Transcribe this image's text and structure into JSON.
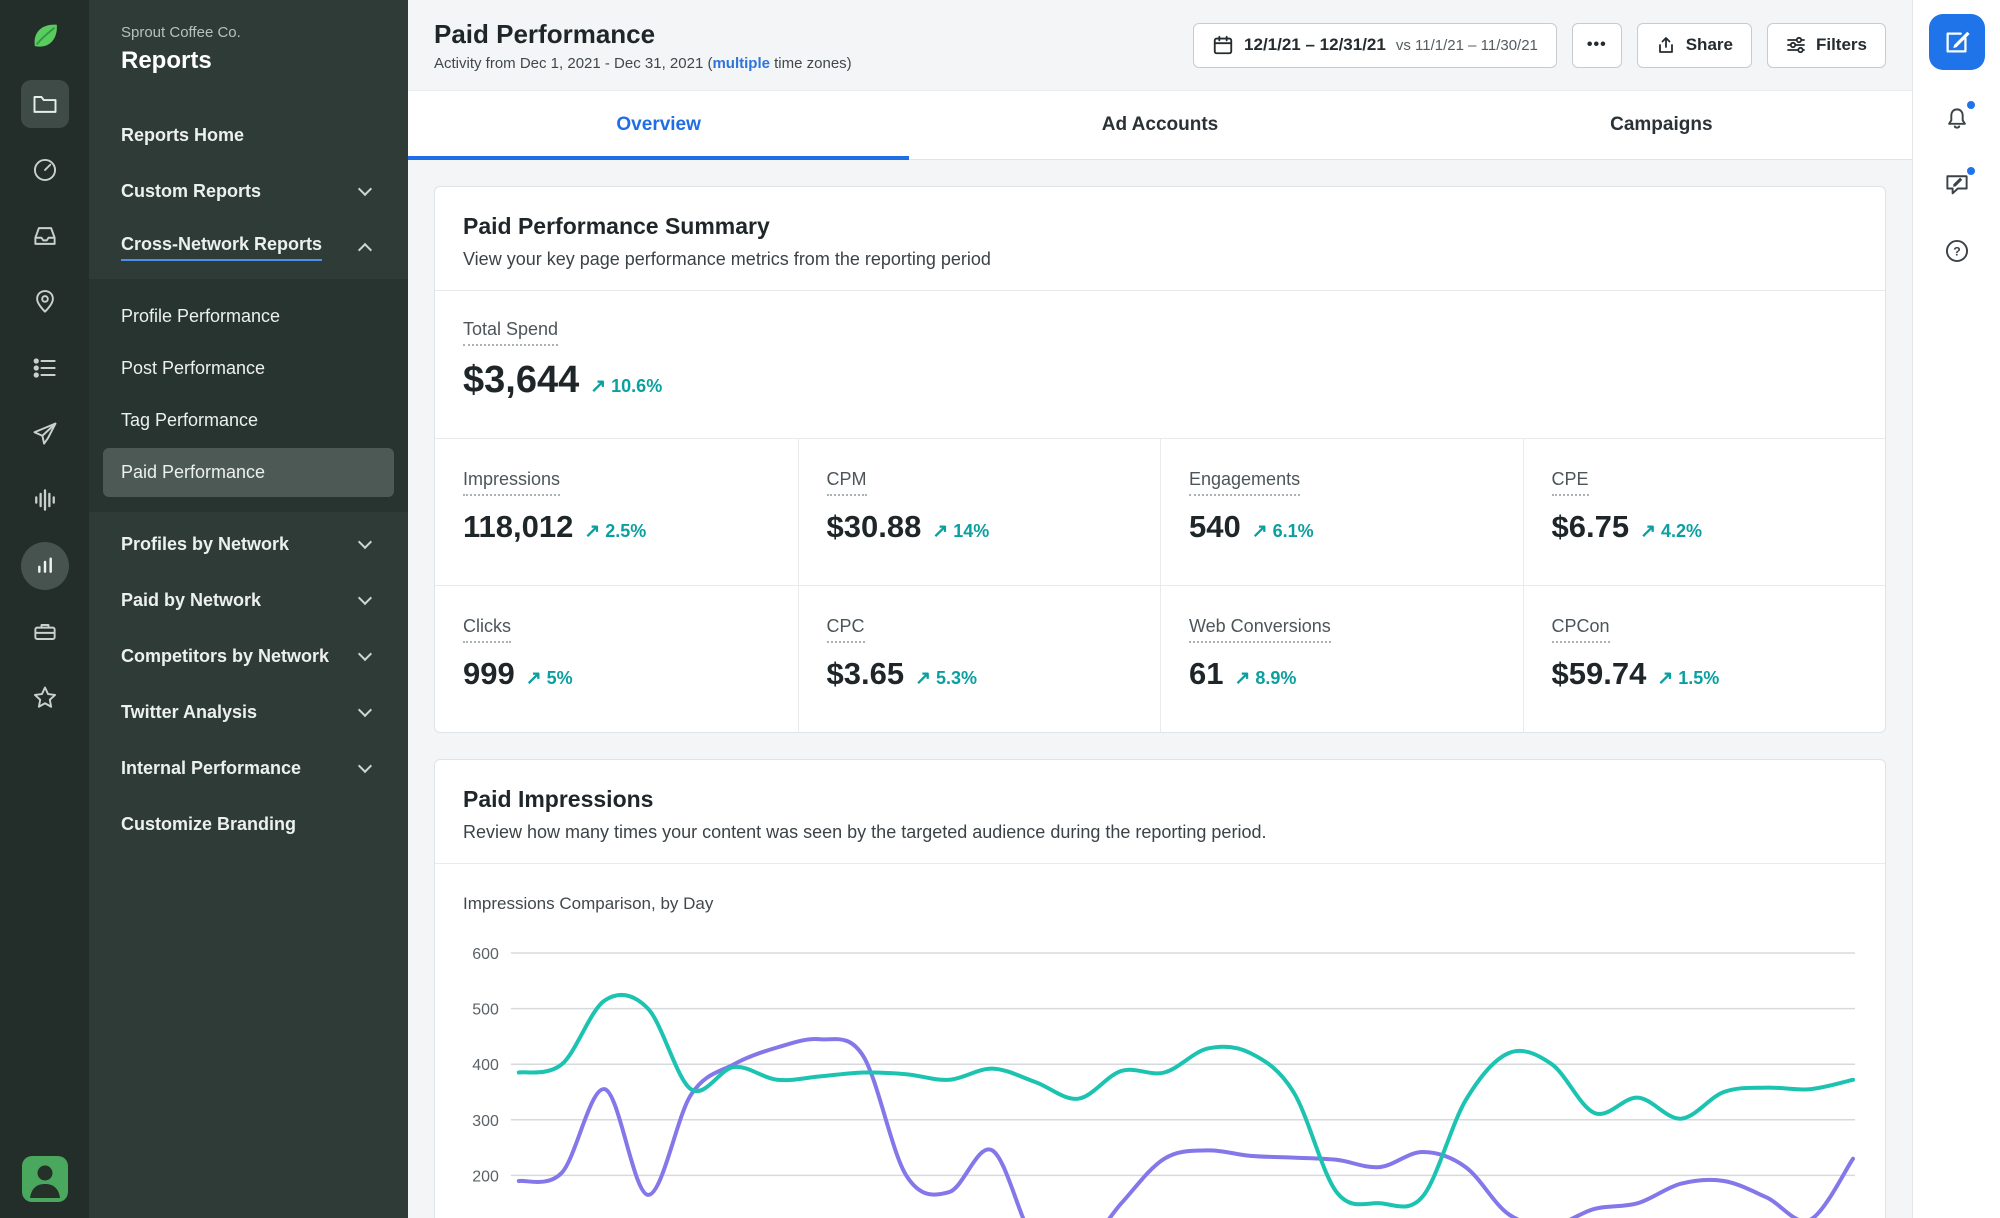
{
  "colors": {
    "accent_blue": "#1f6ee5",
    "link_blue": "#2d74db",
    "delta_teal": "#0ba0a0",
    "line_teal": "#1cc3b0",
    "line_purple": "#8377e9",
    "sprout_green": "#59cb5f",
    "sidebar_bg": "#2f3b37",
    "rail_bg": "#232d2a"
  },
  "left_rail": {
    "icons": [
      "sprout-logo",
      "folder",
      "gauge",
      "inbox",
      "pin",
      "list",
      "paper-plane",
      "waveform",
      "bar-chart",
      "briefcase",
      "star"
    ],
    "avatar": "user-avatar"
  },
  "right_rail": {
    "icons": [
      "compose",
      "bell",
      "feedback",
      "help"
    ]
  },
  "sidebar": {
    "account": "Sprout Coffee Co.",
    "title": "Reports",
    "items": [
      {
        "label": "Reports Home"
      },
      {
        "label": "Custom Reports"
      },
      {
        "label": "Cross-Network Reports"
      }
    ],
    "sub_items": [
      {
        "label": "Profile Performance"
      },
      {
        "label": "Post Performance"
      },
      {
        "label": "Tag Performance"
      },
      {
        "label": "Paid Performance"
      }
    ],
    "items_lower": [
      {
        "label": "Profiles by Network"
      },
      {
        "label": "Paid by Network"
      },
      {
        "label": "Competitors by Network"
      },
      {
        "label": "Twitter Analysis"
      },
      {
        "label": "Internal Performance"
      },
      {
        "label": "Customize Branding"
      }
    ]
  },
  "header": {
    "title": "Paid Performance",
    "subtitle_prefix": "Activity from Dec 1, 2021 - Dec 31, 2021 (",
    "subtitle_link": "multiple",
    "subtitle_suffix": " time zones)",
    "date_range": "12/1/21 – 12/31/21",
    "date_compare": "vs 11/1/21 – 11/30/21",
    "more_label": "•••",
    "share_label": "Share",
    "filters_label": "Filters"
  },
  "tabs": [
    {
      "label": "Overview"
    },
    {
      "label": "Ad Accounts"
    },
    {
      "label": "Campaigns"
    }
  ],
  "summary_card": {
    "title": "Paid Performance Summary",
    "subtitle": "View your key page performance metrics from the reporting period",
    "hero": {
      "label": "Total Spend",
      "value": "$3,644",
      "arrow": "↗",
      "delta": "10.6%"
    },
    "metrics": [
      {
        "label": "Impressions",
        "value": "118,012",
        "arrow": "↗",
        "delta": "2.5%"
      },
      {
        "label": "CPM",
        "value": "$30.88",
        "arrow": "↗",
        "delta": "14%"
      },
      {
        "label": "Engagements",
        "value": "540",
        "arrow": "↗",
        "delta": "6.1%"
      },
      {
        "label": "CPE",
        "value": "$6.75",
        "arrow": "↗",
        "delta": "4.2%"
      },
      {
        "label": "Clicks",
        "value": "999",
        "arrow": "↗",
        "delta": "5%"
      },
      {
        "label": "CPC",
        "value": "$3.65",
        "arrow": "↗",
        "delta": "5.3%"
      },
      {
        "label": "Web Conversions",
        "value": "61",
        "arrow": "↗",
        "delta": "8.9%"
      },
      {
        "label": "CPCon",
        "value": "$59.74",
        "arrow": "↗",
        "delta": "1.5%"
      }
    ]
  },
  "impressions_card": {
    "title": "Paid Impressions",
    "subtitle": "Review how many times your content was seen by the targeted audience during the reporting period.",
    "caption": "Impressions Comparison, by Day"
  },
  "chart_data": {
    "type": "line",
    "title": "Impressions Comparison, by Day",
    "x_unit": "day",
    "x": [
      1,
      2,
      3,
      4,
      5,
      6,
      7,
      8,
      9,
      10,
      11,
      12,
      13,
      14,
      15,
      16,
      17,
      18,
      19,
      20,
      21,
      22,
      23,
      24,
      25,
      26,
      27,
      28,
      29,
      30,
      31,
      32
    ],
    "yticks": [
      600,
      500,
      400,
      300,
      200
    ],
    "ylim": [
      100,
      600
    ],
    "grid": true,
    "legend_visible": false,
    "x_axis_labels_visible": false,
    "series": [
      {
        "name": "series-purple",
        "color": "#8377e9",
        "values": [
          190,
          205,
          355,
          165,
          345,
          400,
          430,
          445,
          415,
          200,
          170,
          245,
          80,
          60,
          150,
          230,
          245,
          235,
          232,
          228,
          215,
          242,
          215,
          130,
          110,
          140,
          150,
          185,
          190,
          160,
          120,
          230
        ]
      },
      {
        "name": "series-teal",
        "color": "#1cc3b0",
        "values": [
          385,
          400,
          515,
          500,
          355,
          395,
          372,
          378,
          385,
          382,
          372,
          392,
          368,
          338,
          388,
          385,
          428,
          420,
          350,
          170,
          150,
          162,
          335,
          420,
          400,
          312,
          340,
          302,
          350,
          358,
          355,
          372
        ]
      }
    ]
  }
}
